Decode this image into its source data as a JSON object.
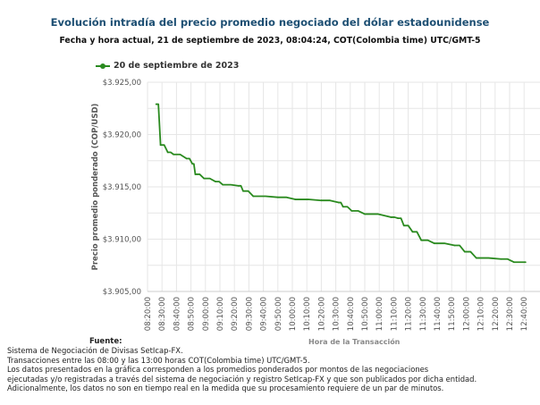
{
  "chart_data": {
    "type": "line",
    "title": "Evolución intradía del precio promedio negociado del dólar estadounidense",
    "subtitle": "Fecha y hora actual, 21 de septiembre de 2023, 08:04:24, COT(Colombia time) UTC/GMT-5",
    "xlabel": "Hora de la Transacción",
    "ylabel": "Precio promedio ponderado (COP/USD)",
    "ylim": [
      3905,
      3925
    ],
    "yticks": [
      "$3.925,00",
      "$3.920,00",
      "$3.915,00",
      "$3.910,00",
      "$3.905,00"
    ],
    "ytick_values": [
      3925,
      3920,
      3915,
      3910,
      3905
    ],
    "xticks": [
      "08:20:00",
      "08:30:00",
      "08:40:00",
      "08:50:00",
      "09:00:00",
      "09:10:00",
      "09:20:00",
      "09:30:00",
      "09:40:00",
      "09:50:00",
      "10:00:00",
      "10:10:00",
      "10:20:00",
      "10:30:00",
      "10:40:00",
      "10:50:00",
      "11:00:00",
      "11:10:00",
      "11:20:00",
      "11:30:00",
      "11:40:00",
      "11:50:00",
      "12:00:00",
      "12:10:00",
      "12:20:00",
      "12:30:00",
      "12:40:00"
    ],
    "grid": true,
    "legend_position": "top-left",
    "series": [
      {
        "name": "20 de septiembre de 2023",
        "color": "#2a8a1f",
        "x": [
          "08:26",
          "08:29",
          "08:34",
          "08:38",
          "08:47",
          "08:51",
          "08:53",
          "08:59",
          "09:07",
          "09:12",
          "09:23",
          "09:26",
          "09:33",
          "09:50",
          "10:02",
          "10:20",
          "10:32",
          "10:35",
          "10:41",
          "10:50",
          "11:08",
          "11:13",
          "11:17",
          "11:23",
          "11:29",
          "11:38",
          "11:52",
          "11:59",
          "12:07",
          "12:24",
          "12:33",
          "12:41"
        ],
        "values": [
          3922.9,
          3919.0,
          3918.3,
          3918.1,
          3917.7,
          3917.2,
          3916.2,
          3915.8,
          3915.5,
          3915.2,
          3915.1,
          3914.6,
          3914.1,
          3914.0,
          3913.8,
          3913.7,
          3913.5,
          3913.1,
          3912.7,
          3912.4,
          3912.1,
          3912.0,
          3911.3,
          3910.7,
          3909.9,
          3909.6,
          3909.4,
          3908.8,
          3908.2,
          3908.1,
          3907.8,
          3907.8
        ]
      }
    ]
  },
  "source": {
    "heading": "Fuente:",
    "lines": [
      "Sistema de Negociación de Divisas SetIcap-FX.",
      "Transacciones entre las 08:00 y las 13:00 horas COT(Colombia time) UTC/GMT-5.",
      "Los datos presentados en la gráfica corresponden a los promedios ponderados por montos de las negociaciones",
      "ejecutadas y/o registradas a través del sistema de negociación y registro SetIcap-FX y que son publicados por dicha entidad.",
      "Adicionalmente, los datos no son en tiempo real en la medida que su procesamiento requiere de un par de minutos."
    ]
  }
}
